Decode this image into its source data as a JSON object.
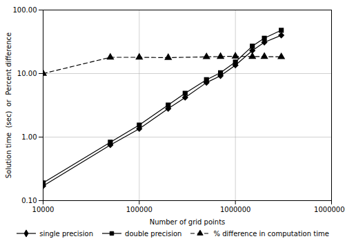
{
  "chart_data": {
    "type": "line",
    "xlabel": "Number of grid points",
    "ylabel": "Solution time  (sec)  or  Percent difference",
    "log": true,
    "grid": true,
    "legend": "bottom",
    "xlim": [
      10000,
      10000000
    ],
    "ylim": [
      0.1,
      100.0
    ],
    "xticks": [
      10000,
      100000,
      1000000,
      10000000
    ],
    "yticks": [
      {
        "value": 0.1,
        "label": "0.10"
      },
      {
        "value": 1.0,
        "label": "1.00"
      },
      {
        "value": 10.0,
        "label": "10.00"
      },
      {
        "value": 100.0,
        "label": "100.00"
      }
    ],
    "series": [
      {
        "name": "single precision",
        "color": "#000000",
        "marker": "diamond",
        "line_style": "solid",
        "x": [
          10000,
          50000,
          100000,
          200000,
          300000,
          500000,
          700000,
          1000000,
          1500000,
          2000000,
          3000000
        ],
        "values": [
          0.17,
          0.75,
          1.35,
          2.8,
          4.2,
          7.2,
          9.2,
          13.5,
          23.0,
          31.0,
          40.0
        ]
      },
      {
        "name": "double precision",
        "color": "#000000",
        "marker": "square",
        "line_style": "solid",
        "x": [
          10000,
          50000,
          100000,
          200000,
          300000,
          500000,
          700000,
          1000000,
          1500000,
          2000000,
          3000000
        ],
        "values": [
          0.19,
          0.83,
          1.55,
          3.2,
          4.9,
          8.0,
          10.3,
          15.2,
          27.0,
          36.0,
          48.0
        ]
      },
      {
        "name": "% difference in computation time",
        "color": "#000000",
        "marker": "triangle",
        "line_style": "dashed",
        "x": [
          10000,
          50000,
          100000,
          200000,
          500000,
          700000,
          1000000,
          1500000,
          2000000,
          3000000
        ],
        "values": [
          10.0,
          18.0,
          18.0,
          17.8,
          18.3,
          18.5,
          18.7,
          18.5,
          18.5,
          18.3
        ]
      }
    ]
  }
}
